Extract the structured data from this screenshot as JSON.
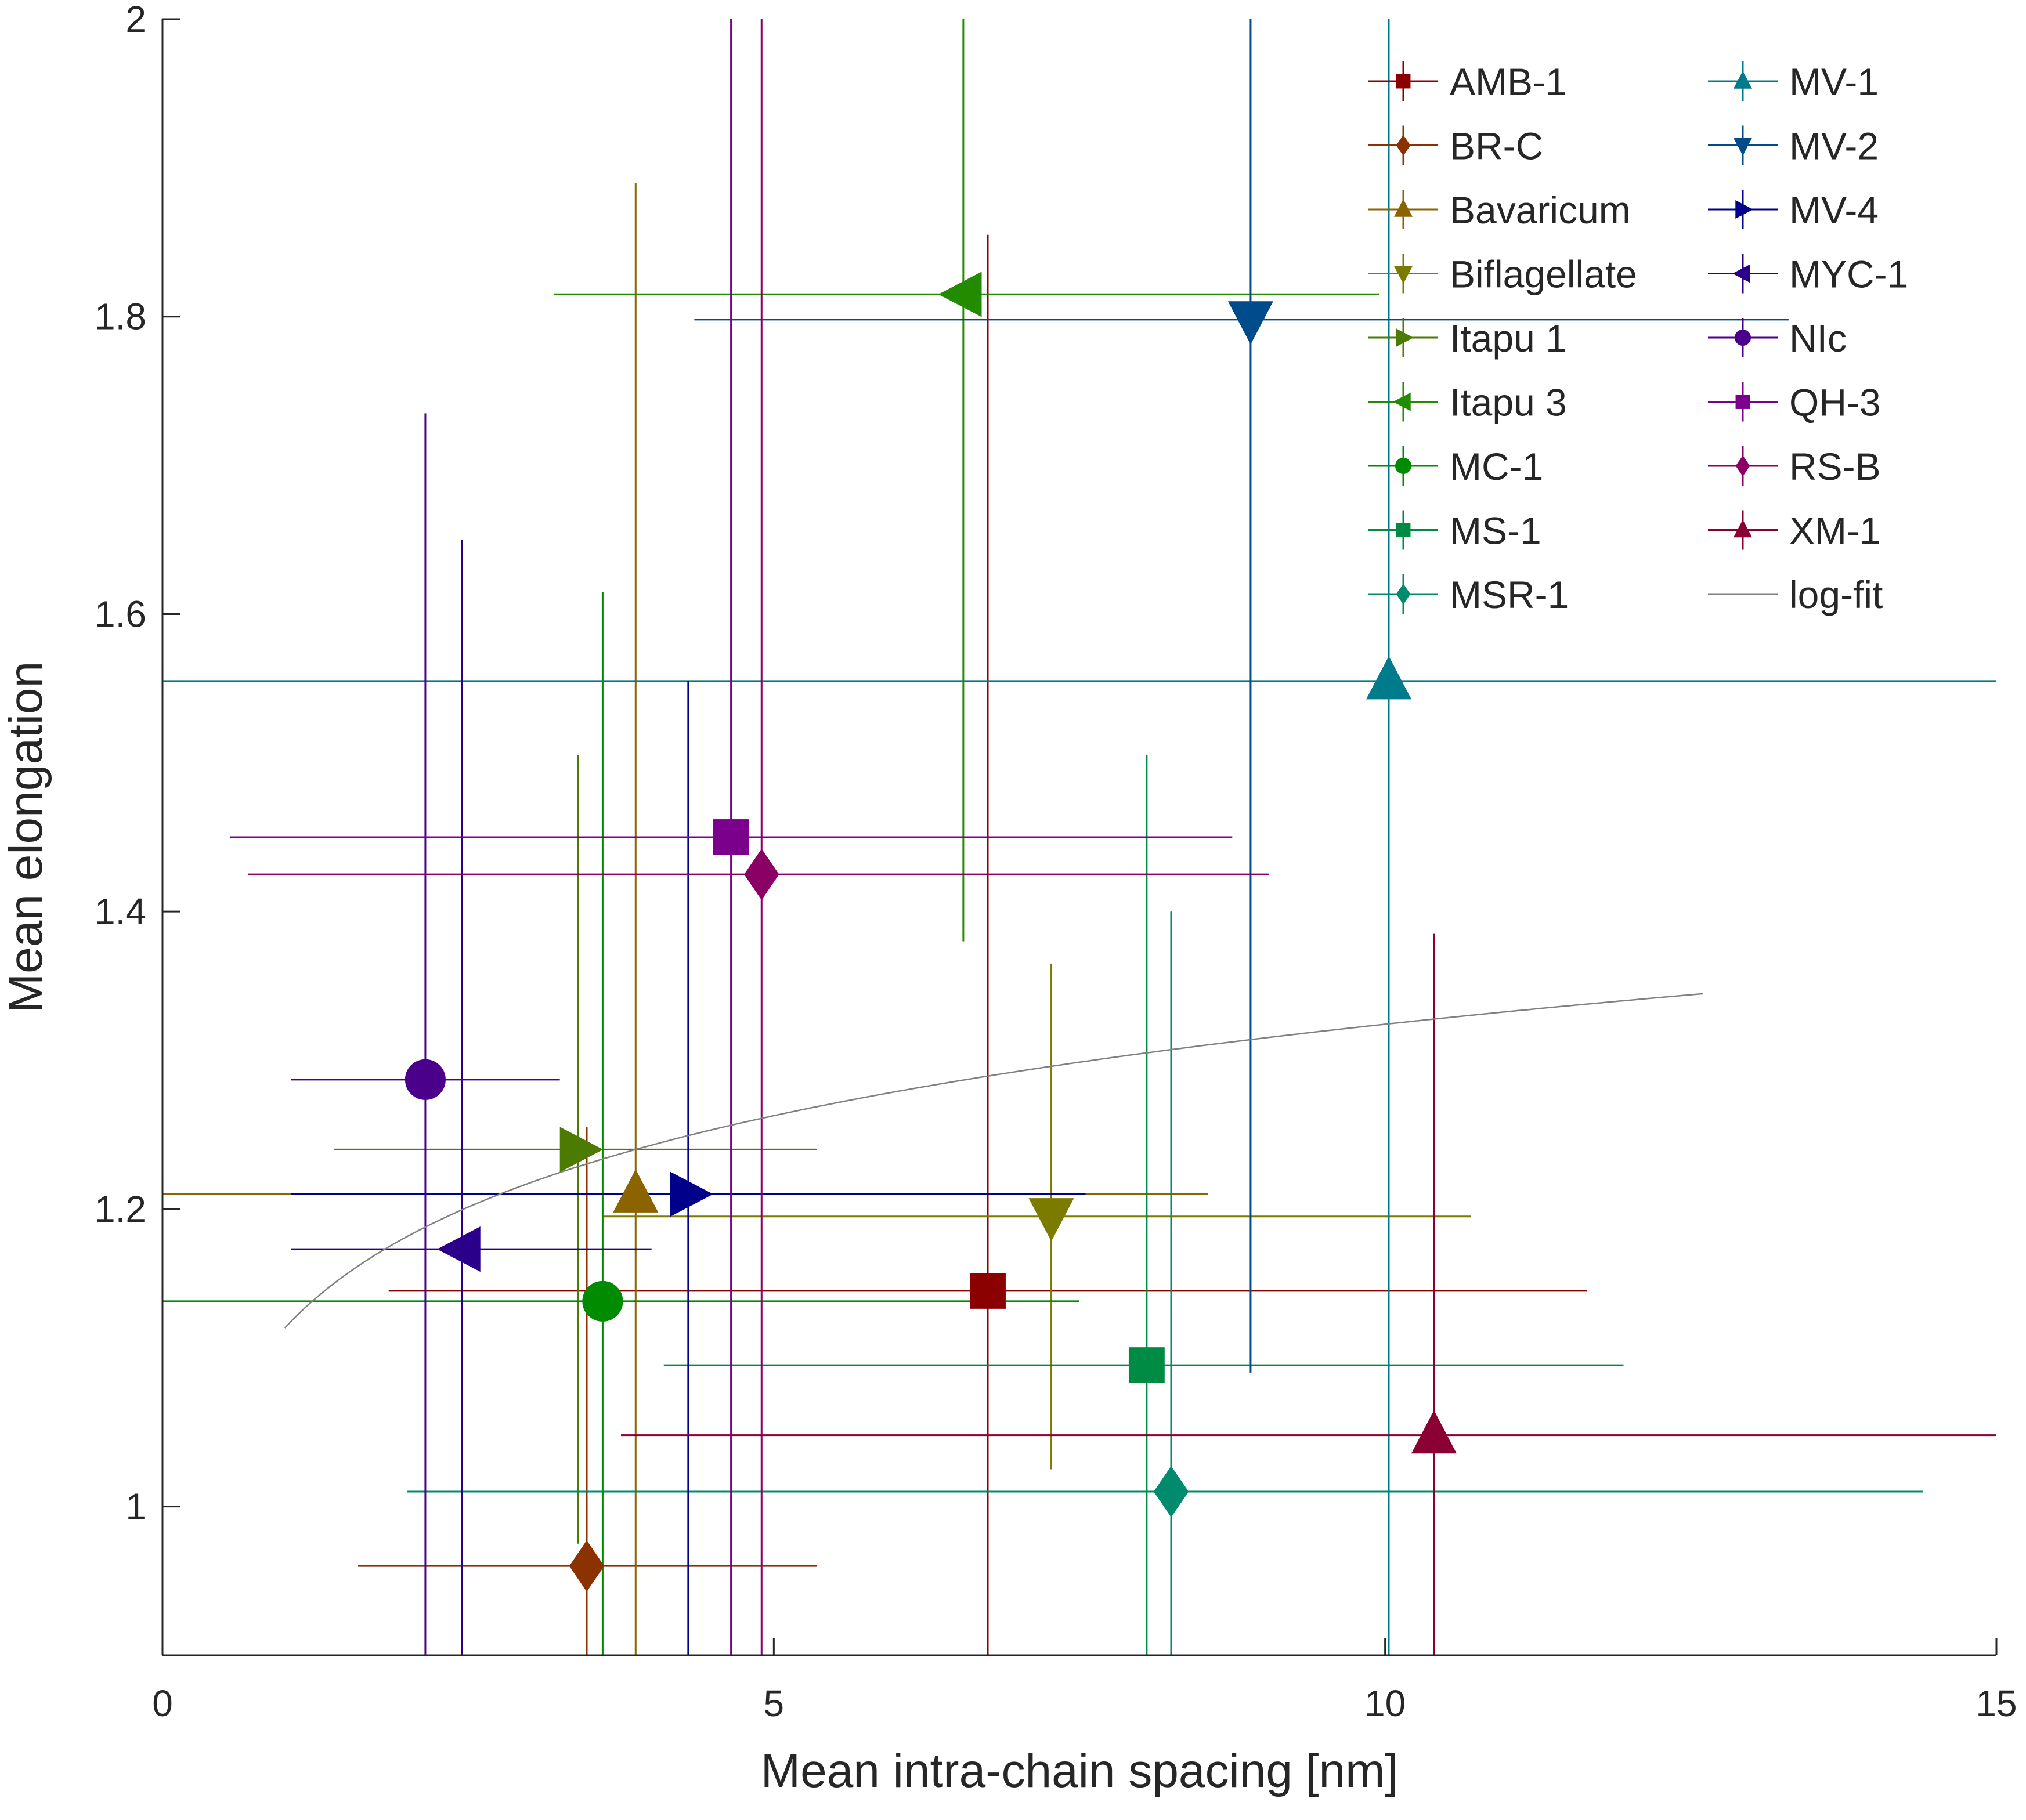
{
  "chart_data": {
    "type": "scatter",
    "title": "",
    "xlabel": "Mean intra-chain spacing [nm]",
    "ylabel": "Mean elongation",
    "xlim": [
      0,
      15
    ],
    "ylim": [
      0.9,
      2.0
    ],
    "xticks": [
      0,
      5,
      10,
      15
    ],
    "yticks": [
      1,
      1.2,
      1.4,
      1.6,
      1.8,
      2
    ],
    "grid": false,
    "legend_position": "top-right",
    "series": [
      {
        "name": "AMB-1",
        "color": "#8b0000",
        "marker": "square",
        "x": 6.75,
        "y": 1.145,
        "xerr": [
          1.85,
          11.65
        ],
        "yerr": [
          0.9,
          1.855
        ]
      },
      {
        "name": "BR-C",
        "color": "#8b3200",
        "marker": "diamond",
        "x": 3.47,
        "y": 0.96,
        "xerr": [
          1.6,
          5.35
        ],
        "yerr": [
          0.9,
          1.255
        ]
      },
      {
        "name": "Bavaricum",
        "color": "#8b6400",
        "marker": "triangle-up",
        "x": 3.87,
        "y": 1.21,
        "xerr": [
          0.0,
          8.55
        ],
        "yerr": [
          0.9,
          1.89
        ]
      },
      {
        "name": "Biflagellate",
        "color": "#7b7b00",
        "marker": "triangle-down",
        "x": 7.27,
        "y": 1.195,
        "xerr": [
          3.6,
          10.7
        ],
        "yerr": [
          1.025,
          1.365
        ]
      },
      {
        "name": "Itapu 1",
        "color": "#4b7b00",
        "marker": "triangle-right",
        "x": 3.4,
        "y": 1.24,
        "xerr": [
          1.4,
          5.35
        ],
        "yerr": [
          0.975,
          1.505
        ]
      },
      {
        "name": "Itapu 3",
        "color": "#228b00",
        "marker": "triangle-left",
        "x": 6.55,
        "y": 1.815,
        "xerr": [
          3.2,
          9.95
        ],
        "yerr": [
          1.38,
          2.0
        ]
      },
      {
        "name": "MC-1",
        "color": "#008b00",
        "marker": "circle",
        "x": 3.6,
        "y": 1.138,
        "xerr": [
          0.0,
          7.5
        ],
        "yerr": [
          0.9,
          1.615
        ]
      },
      {
        "name": "MS-1",
        "color": "#008b45",
        "marker": "square",
        "x": 8.05,
        "y": 1.095,
        "xerr": [
          4.1,
          11.95
        ],
        "yerr": [
          0.9,
          1.505
        ]
      },
      {
        "name": "MSR-1",
        "color": "#008b6e",
        "marker": "diamond",
        "x": 8.25,
        "y": 1.01,
        "xerr": [
          2.0,
          14.4
        ],
        "yerr": [
          0.9,
          1.4
        ]
      },
      {
        "name": "MV-1",
        "color": "#007b8b",
        "marker": "triangle-up",
        "x": 10.03,
        "y": 1.555,
        "xerr": [
          0.0,
          15.0
        ],
        "yerr": [
          0.9,
          2.0
        ]
      },
      {
        "name": "MV-2",
        "color": "#004b8b",
        "marker": "triangle-down",
        "x": 8.9,
        "y": 1.798,
        "xerr": [
          4.35,
          13.3
        ],
        "yerr": [
          1.09,
          2.0
        ]
      },
      {
        "name": "MV-4",
        "color": "#00008b",
        "marker": "triangle-right",
        "x": 4.3,
        "y": 1.21,
        "xerr": [
          1.05,
          7.55
        ],
        "yerr": [
          0.9,
          1.555
        ]
      },
      {
        "name": "MYC-1",
        "color": "#2a008b",
        "marker": "triangle-left",
        "x": 2.45,
        "y": 1.173,
        "xerr": [
          1.05,
          4.0
        ],
        "yerr": [
          0.9,
          1.65
        ]
      },
      {
        "name": "NIc",
        "color": "#4b008b",
        "marker": "circle",
        "x": 2.15,
        "y": 1.287,
        "xerr": [
          1.05,
          3.25
        ],
        "yerr": [
          0.9,
          1.735
        ]
      },
      {
        "name": "QH-3",
        "color": "#7b008b",
        "marker": "square",
        "x": 4.65,
        "y": 1.45,
        "xerr": [
          0.55,
          8.75
        ],
        "yerr": [
          0.9,
          2.0
        ]
      },
      {
        "name": "RS-B",
        "color": "#8b0064",
        "marker": "diamond",
        "x": 4.9,
        "y": 1.425,
        "xerr": [
          0.7,
          9.05
        ],
        "yerr": [
          0.9,
          2.0
        ]
      },
      {
        "name": "XM-1",
        "color": "#8b0032",
        "marker": "triangle-up",
        "x": 10.4,
        "y": 1.048,
        "xerr": [
          3.75,
          15.0
        ],
        "yerr": [
          0.9,
          1.385
        ]
      }
    ],
    "fit": {
      "name": "log-fit",
      "color": "#808080",
      "a": 1.12,
      "b": 0.0887,
      "x0": 1.0,
      "x1": 12.6
    }
  }
}
